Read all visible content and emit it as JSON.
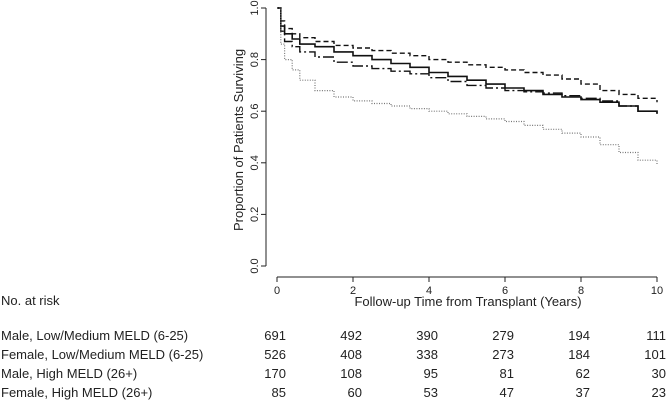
{
  "chart_data": {
    "type": "line",
    "title": "",
    "xlabel": "Follow-up Time from Transplant (Years)",
    "ylabel": "Proportion of Patients Surviving",
    "xlim": [
      0,
      10
    ],
    "ylim": [
      0,
      1
    ],
    "x_ticks": [
      "0",
      "2",
      "4",
      "6",
      "8",
      "10"
    ],
    "y_ticks": [
      "0.0",
      "0.2",
      "0.4",
      "0.6",
      "0.8",
      "1.0"
    ],
    "grid": false,
    "series": [
      {
        "name": "Male, Low/Medium MELD (6-25)",
        "style": "solid",
        "color": "#111111",
        "x": [
          0,
          0.1,
          0.2,
          0.4,
          0.6,
          1.0,
          1.5,
          2.0,
          2.5,
          3.0,
          3.5,
          4.0,
          4.5,
          5.0,
          5.5,
          6.0,
          6.5,
          7.0,
          7.5,
          8.0,
          8.5,
          9.0,
          9.5,
          10.0
        ],
        "y": [
          1.0,
          0.93,
          0.9,
          0.88,
          0.86,
          0.85,
          0.83,
          0.815,
          0.8,
          0.785,
          0.77,
          0.75,
          0.735,
          0.72,
          0.705,
          0.69,
          0.68,
          0.665,
          0.655,
          0.645,
          0.635,
          0.62,
          0.6,
          0.59
        ]
      },
      {
        "name": "Female, Low/Medium MELD (6-25)",
        "style": "short-dash",
        "color": "#111111",
        "x": [
          0,
          0.1,
          0.2,
          0.4,
          0.6,
          1.0,
          1.5,
          2.0,
          2.5,
          3.0,
          3.5,
          4.0,
          4.5,
          5.0,
          5.5,
          6.0,
          6.5,
          7.0,
          7.5,
          8.0,
          8.5,
          9.0,
          9.5,
          10.0
        ],
        "y": [
          1.0,
          0.95,
          0.92,
          0.9,
          0.885,
          0.87,
          0.855,
          0.845,
          0.835,
          0.825,
          0.815,
          0.8,
          0.79,
          0.78,
          0.77,
          0.76,
          0.75,
          0.74,
          0.725,
          0.705,
          0.68,
          0.665,
          0.65,
          0.635
        ]
      },
      {
        "name": "Male, High MELD (26+)",
        "style": "long-dash",
        "color": "#111111",
        "x": [
          0,
          0.1,
          0.2,
          0.4,
          0.6,
          1.0,
          1.5,
          2.0,
          2.5,
          3.0,
          3.5,
          4.0,
          4.5,
          5.0,
          5.5,
          6.0,
          6.5,
          7.0,
          7.5,
          8.0,
          8.5,
          9.0,
          9.5,
          10.0
        ],
        "y": [
          1.0,
          0.91,
          0.87,
          0.85,
          0.83,
          0.81,
          0.79,
          0.775,
          0.765,
          0.755,
          0.745,
          0.73,
          0.715,
          0.7,
          0.69,
          0.68,
          0.675,
          0.67,
          0.66,
          0.65,
          0.64,
          0.62,
          0.6,
          0.59
        ]
      },
      {
        "name": "Female, High MELD (26+)",
        "style": "dotted",
        "color": "#777777",
        "x": [
          0,
          0.1,
          0.2,
          0.4,
          0.6,
          1.0,
          1.5,
          2.0,
          2.5,
          3.0,
          3.5,
          4.0,
          4.5,
          5.0,
          5.5,
          6.0,
          6.5,
          7.0,
          7.5,
          8.0,
          8.5,
          9.0,
          9.5,
          10.0
        ],
        "y": [
          1.0,
          0.86,
          0.8,
          0.76,
          0.72,
          0.68,
          0.655,
          0.64,
          0.63,
          0.62,
          0.61,
          0.6,
          0.59,
          0.58,
          0.57,
          0.56,
          0.545,
          0.53,
          0.515,
          0.5,
          0.47,
          0.44,
          0.41,
          0.39
        ]
      }
    ],
    "risk_table": {
      "title": "No. at risk",
      "times": [
        0,
        2,
        4,
        6,
        8,
        10
      ],
      "rows": [
        {
          "label": "Male, Low/Medium MELD (6-25)",
          "values": [
            691,
            492,
            390,
            279,
            194,
            111
          ]
        },
        {
          "label": "Female, Low/Medium MELD (6-25)",
          "values": [
            526,
            408,
            338,
            273,
            184,
            101
          ]
        },
        {
          "label": "Male, High MELD (26+)",
          "values": [
            170,
            108,
            95,
            81,
            62,
            30
          ]
        },
        {
          "label": "Female, High MELD (26+)",
          "values": [
            85,
            60,
            53,
            47,
            37,
            23
          ]
        }
      ]
    }
  }
}
